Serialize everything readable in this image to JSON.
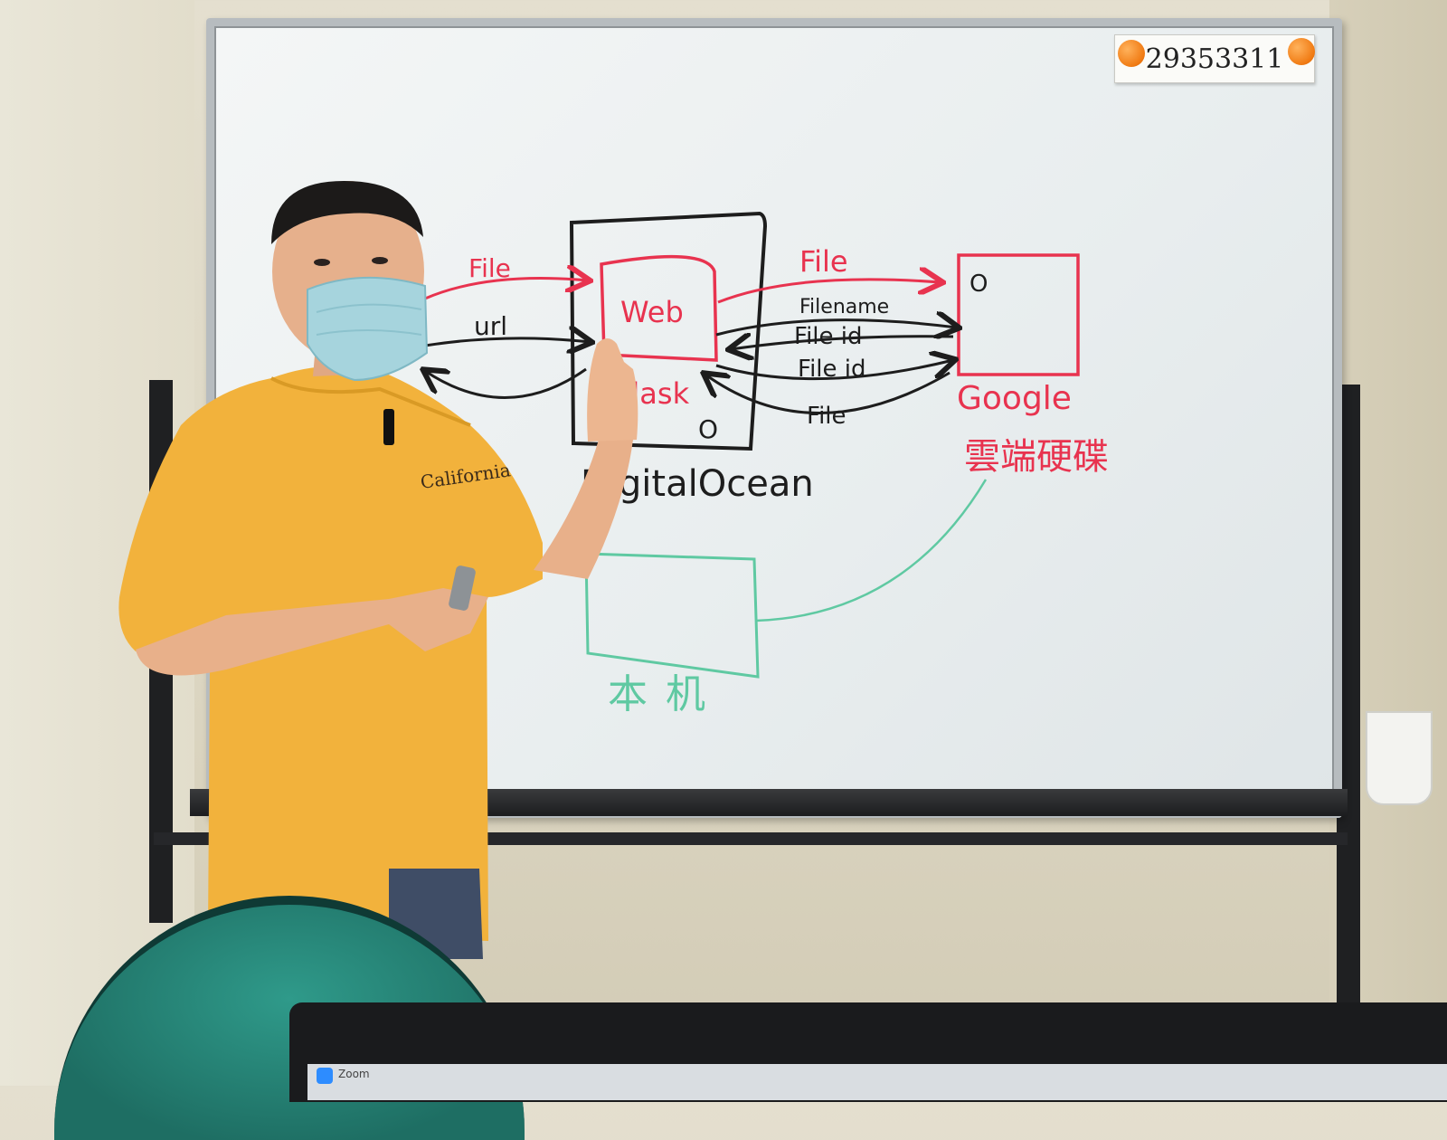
{
  "board_label": "29353311",
  "diagram": {
    "server_label": "DigitalOcean",
    "web_label": "Web",
    "flask_label": "Flask",
    "circle_mark": "O",
    "left_arrows": {
      "file": "File",
      "url": "url"
    },
    "right_arrows": {
      "file": "File",
      "filename": "Filename",
      "file_id_1": "File id",
      "file_id_2": "File id",
      "file_return": "File"
    },
    "google_label": "Google",
    "google_cn_label": "雲端硬碟",
    "local_label": "本机",
    "colors": {
      "red_marker": "#e8334f",
      "black_marker": "#1d1d1d",
      "green_marker": "#5fc9a2"
    }
  },
  "laptop_app": "Zoom"
}
